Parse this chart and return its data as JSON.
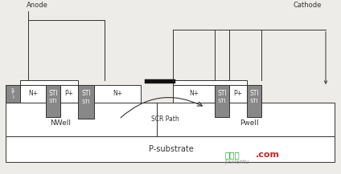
{
  "bg_color": "#eeece8",
  "fig_width": 4.24,
  "fig_height": 2.17,
  "dpi": 100,
  "anode_label": "Anode",
  "cathode_label": "Cathode",
  "nwell_label": "NWell",
  "pwell_label": "Pwell",
  "psubstrate_label": "P-substrate",
  "scr_path_label": "SCR Path",
  "watermark_cn": "接线图",
  "watermark_en": ".com",
  "watermark_url": "jiaxiantu",
  "sti_color": "#888888",
  "line_color": "#333333",
  "text_color": "#333333",
  "white": "#ffffff",
  "black": "#111111"
}
